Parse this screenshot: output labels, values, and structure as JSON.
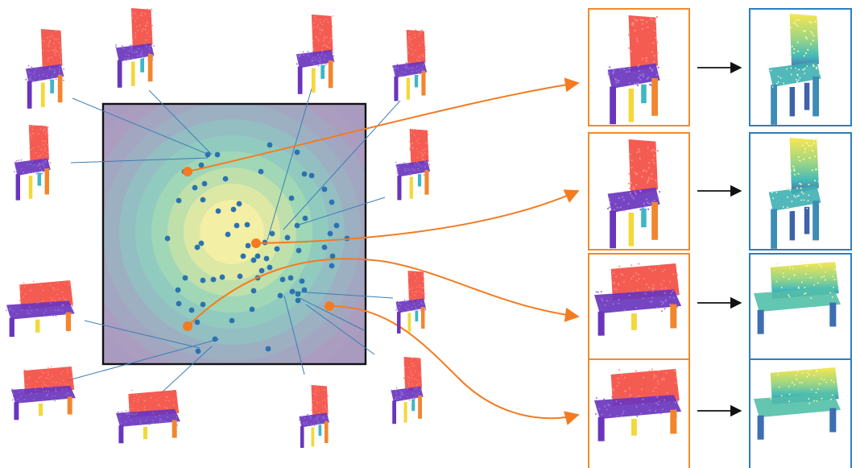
{
  "colors": {
    "back": "#f2453a",
    "seat": "#6a35bd",
    "leg_yellow": "#f4d83a",
    "leg_orange": "#f2862e",
    "leg_cyan": "#3cb7c6",
    "dot": "#2b72b0",
    "highlight": "#f47b20",
    "link": "#3a7fb6",
    "orange_frame": "#f08a2c",
    "blue_frame": "#2c7ec2",
    "density_outer": "#a99bc0",
    "density_inner": "#f7f0a6",
    "arrow": "#111111"
  },
  "icons": {
    "point_cloud_shape": "chair-pointcloud-icon",
    "sofa_shape": "sofa-pointcloud-icon",
    "density_map": "latent-density-heatmap"
  },
  "latent_space": {
    "description_hidden": true,
    "embedded_shapes": 71,
    "sampled_points": 4
  }
}
